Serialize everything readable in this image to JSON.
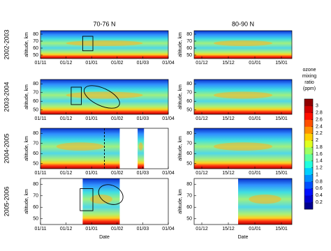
{
  "chart_data": {
    "type": "heatmap-grid",
    "column_titles": [
      "70-76 N",
      "80-90 N"
    ],
    "row_labels": [
      "2002-2003",
      "2003-2004",
      "2004-2005",
      "2005-2006"
    ],
    "y_axis_label": "altitude, km",
    "x_axis_label": "Date",
    "ylim": [
      45,
      85
    ],
    "yticks": [
      50,
      60,
      70,
      80
    ],
    "columns": [
      {
        "xticks": [
          "01/11",
          "01/12",
          "01/01",
          "01/02",
          "01/03",
          "01/04"
        ]
      },
      {
        "xticks": [
          "01/12",
          "15/12",
          "01/01",
          "15/01"
        ]
      }
    ],
    "colorbar": {
      "title": [
        "ozone",
        "mixing",
        "ratio",
        "(ppm)"
      ],
      "clim": [
        0,
        3.2
      ],
      "ticks": [
        0.2,
        0.4,
        0.6,
        0.8,
        1,
        1.2,
        1.4,
        1.6,
        1.8,
        2,
        2.2,
        2.4,
        2.6,
        2.8,
        3
      ],
      "colors": [
        "#00008f",
        "#0000cf",
        "#0010ff",
        "#0050ff",
        "#0090ff",
        "#00d0ff",
        "#20ffdf",
        "#60ff9f",
        "#9fff60",
        "#dfff20",
        "#ffd000",
        "#ff9000",
        "#ff5000",
        "#ff1000",
        "#cf0000",
        "#8f0000"
      ]
    }
  }
}
